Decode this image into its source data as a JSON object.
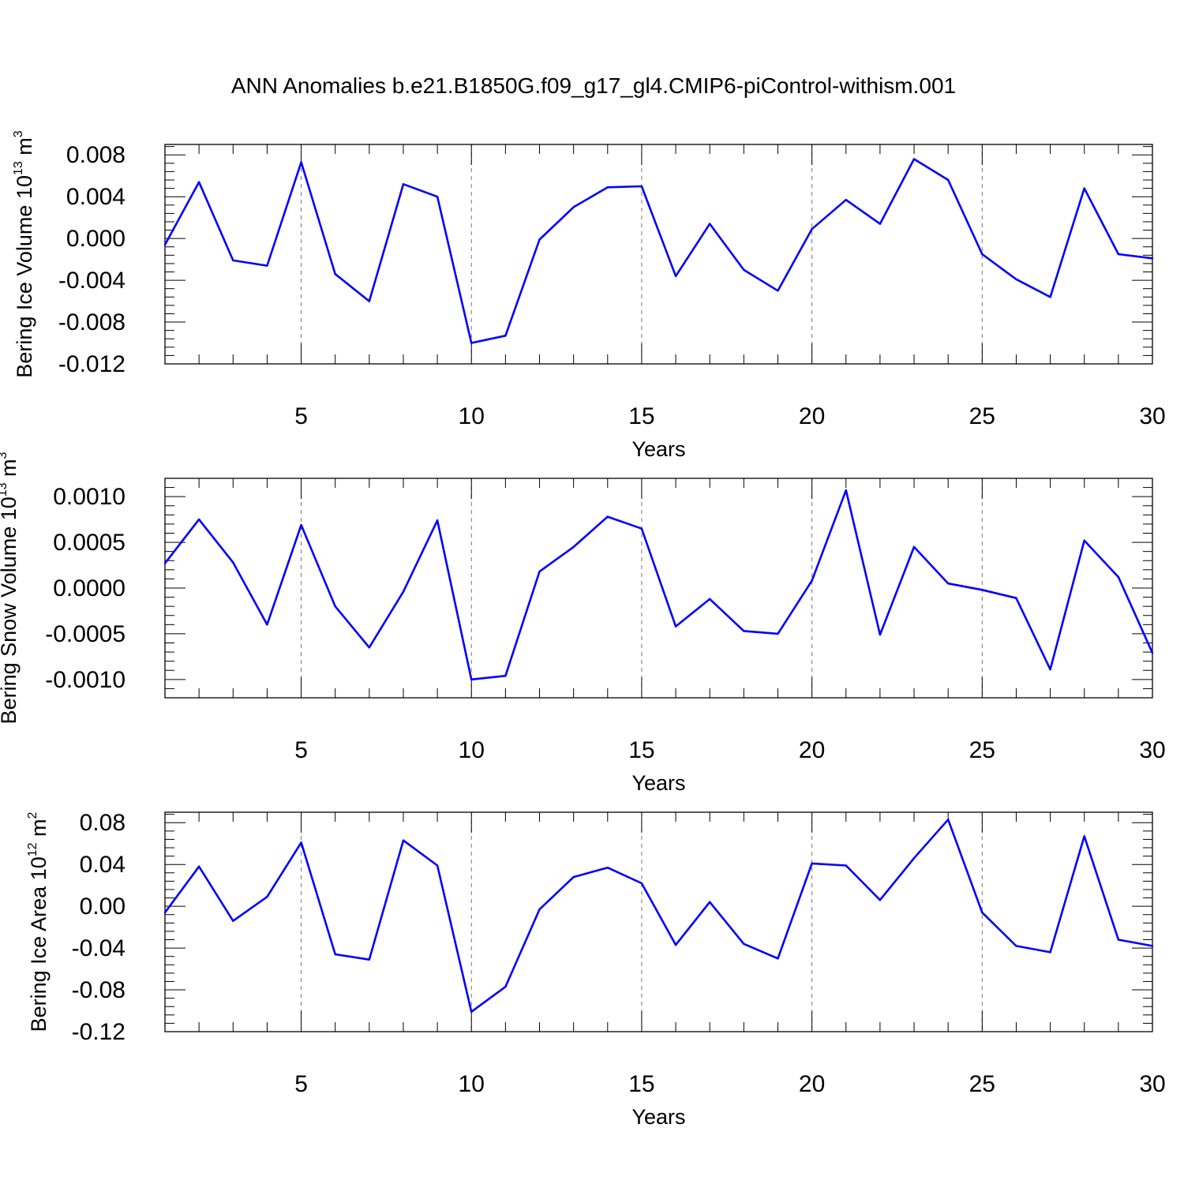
{
  "figure": {
    "title": "ANN Anomalies b.e21.B1850G.f09_g17_gl4.CMIP6-piControl-withism.001"
  },
  "chart_data": [
    {
      "type": "line",
      "xlabel": "Years",
      "ylabel_base": "Bering Ice Volume 10",
      "ylabel_exp": "13",
      "ylabel_unit": " m",
      "ylabel_unit_exp": "3",
      "xlim": [
        1,
        30
      ],
      "ylim": [
        -0.012,
        0.009
      ],
      "x_ticks": [
        5,
        10,
        15,
        20,
        25,
        30
      ],
      "y_ticks": [
        -0.012,
        -0.008,
        -0.004,
        0.0,
        0.004,
        0.008
      ],
      "y_tick_labels": [
        "-0.012",
        "-0.008",
        "-0.004",
        "0.000",
        "0.004",
        "0.008"
      ],
      "dashed_gridlines_x": [
        5,
        10,
        15,
        20,
        25
      ],
      "line_color": "#0000ff",
      "x": [
        1,
        2,
        3,
        4,
        5,
        6,
        7,
        8,
        9,
        10,
        11,
        12,
        13,
        14,
        15,
        16,
        17,
        18,
        19,
        20,
        21,
        22,
        23,
        24,
        25,
        26,
        27,
        28,
        29,
        30
      ],
      "values": [
        -0.0006,
        0.0054,
        -0.0021,
        -0.0026,
        0.0073,
        -0.0034,
        -0.006,
        0.0052,
        0.004,
        -0.01,
        -0.0093,
        -0.0001,
        0.003,
        0.0049,
        0.005,
        -0.0036,
        0.0014,
        -0.003,
        -0.005,
        0.0009,
        0.0037,
        0.0014,
        0.0076,
        0.0056,
        -0.0015,
        -0.0039,
        -0.0056,
        0.0048,
        -0.0015,
        -0.0019
      ]
    },
    {
      "type": "line",
      "xlabel": "Years",
      "ylabel_base": "Bering Snow Volume 10",
      "ylabel_exp": "13",
      "ylabel_unit": " m",
      "ylabel_unit_exp": "3",
      "xlim": [
        1,
        30
      ],
      "ylim": [
        -0.0012,
        0.0012
      ],
      "x_ticks": [
        5,
        10,
        15,
        20,
        25,
        30
      ],
      "y_ticks": [
        -0.001,
        -0.0005,
        0.0,
        0.0005,
        0.001
      ],
      "y_tick_labels": [
        "-0.0010",
        "-0.0005",
        "0.0000",
        "0.0005",
        "0.0010"
      ],
      "dashed_gridlines_x": [
        5,
        10,
        15,
        20,
        25
      ],
      "line_color": "#0000ff",
      "x": [
        1,
        2,
        3,
        4,
        5,
        6,
        7,
        8,
        9,
        10,
        11,
        12,
        13,
        14,
        15,
        16,
        17,
        18,
        19,
        20,
        21,
        22,
        23,
        24,
        25,
        26,
        27,
        28,
        29,
        30
      ],
      "values": [
        0.00027,
        0.00075,
        0.00028,
        -0.0004,
        0.00069,
        -0.0002,
        -0.00065,
        -4e-05,
        0.00074,
        -0.001,
        -0.00096,
        0.00018,
        0.00045,
        0.00078,
        0.00065,
        -0.00042,
        -0.00012,
        -0.00047,
        -0.0005,
        8e-05,
        0.00107,
        -0.00051,
        0.00045,
        5e-05,
        -2e-05,
        -0.00011,
        -0.00089,
        0.00052,
        0.00012,
        -0.00071
      ]
    },
    {
      "type": "line",
      "xlabel": "Years",
      "ylabel_base": "Bering Ice Area 10",
      "ylabel_exp": "12",
      "ylabel_unit": " m",
      "ylabel_unit_exp": "2",
      "xlim": [
        1,
        30
      ],
      "ylim": [
        -0.12,
        0.09
      ],
      "x_ticks": [
        5,
        10,
        15,
        20,
        25,
        30
      ],
      "y_ticks": [
        -0.12,
        -0.08,
        -0.04,
        0.0,
        0.04,
        0.08
      ],
      "y_tick_labels": [
        "-0.12",
        "-0.08",
        "-0.04",
        "0.00",
        "0.04",
        "0.08"
      ],
      "dashed_gridlines_x": [
        5,
        10,
        15,
        20,
        25
      ],
      "line_color": "#0000ff",
      "x": [
        1,
        2,
        3,
        4,
        5,
        6,
        7,
        8,
        9,
        10,
        11,
        12,
        13,
        14,
        15,
        16,
        17,
        18,
        19,
        20,
        21,
        22,
        23,
        24,
        25,
        26,
        27,
        28,
        29,
        30
      ],
      "values": [
        -0.006,
        0.038,
        -0.014,
        0.009,
        0.061,
        -0.046,
        -0.051,
        0.063,
        0.039,
        -0.101,
        -0.077,
        -0.003,
        0.028,
        0.037,
        0.022,
        -0.037,
        0.004,
        -0.036,
        -0.05,
        0.041,
        0.039,
        0.006,
        0.046,
        0.083,
        -0.006,
        -0.038,
        -0.044,
        0.067,
        -0.032,
        -0.038
      ]
    }
  ]
}
